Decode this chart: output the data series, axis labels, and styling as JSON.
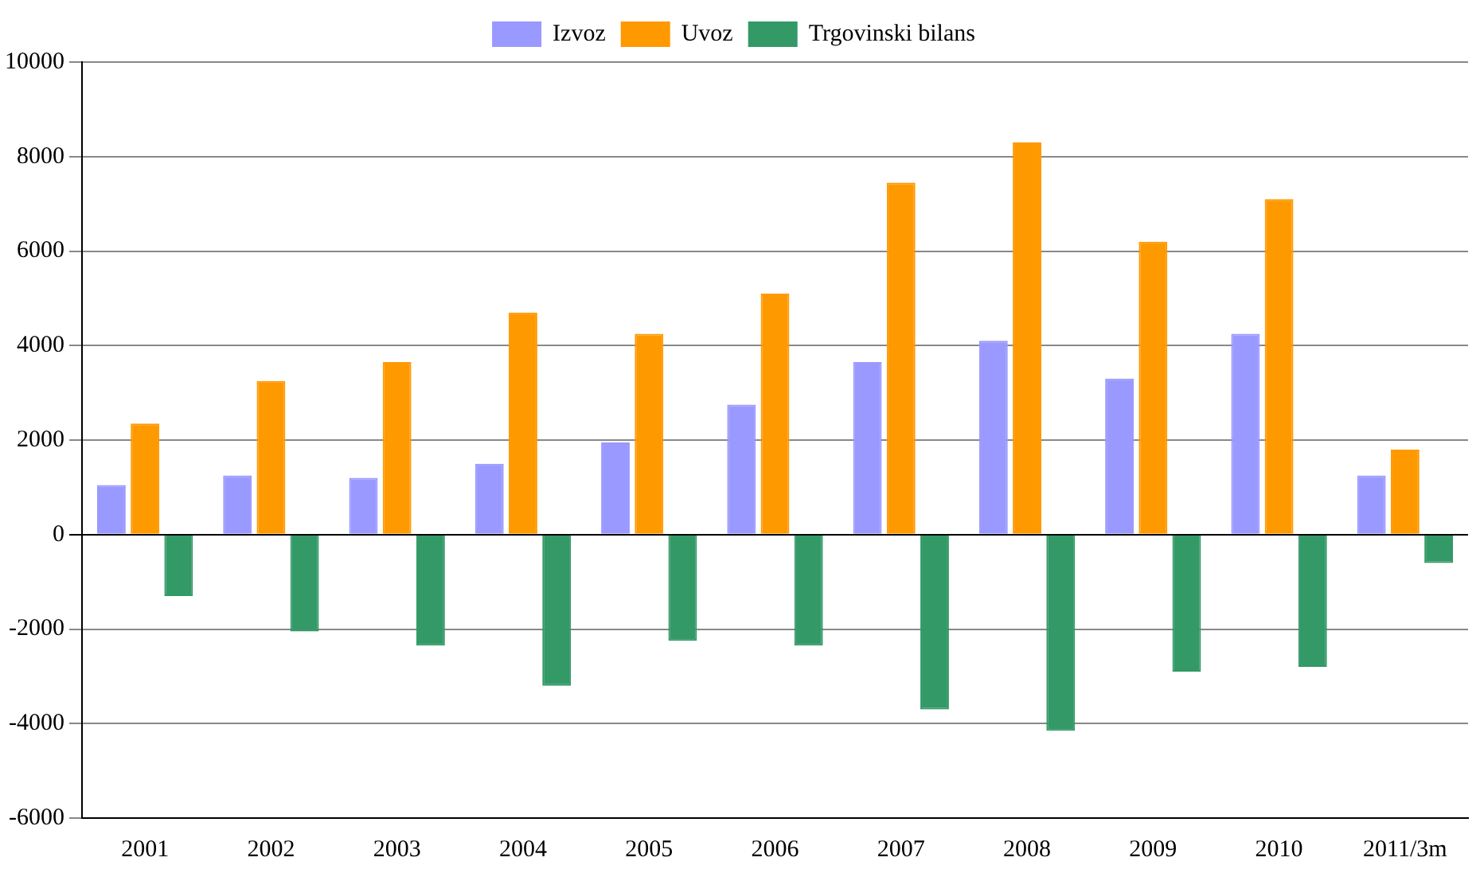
{
  "chart_data": {
    "type": "bar",
    "categories": [
      "2001",
      "2002",
      "2003",
      "2004",
      "2005",
      "2006",
      "2007",
      "2008",
      "2009",
      "2010",
      "2011/3m"
    ],
    "series": [
      {
        "name": "Izvoz",
        "color": "#9999ff",
        "values": [
          1050,
          1250,
          1200,
          1500,
          1950,
          2750,
          3650,
          4100,
          3300,
          4250,
          1250
        ]
      },
      {
        "name": "Uvoz",
        "color": "#ff9900",
        "values": [
          2350,
          3250,
          3650,
          4700,
          4250,
          5100,
          7450,
          8300,
          6200,
          7100,
          1800
        ]
      },
      {
        "name": "Trgovinski bilans",
        "color": "#339966",
        "values": [
          -1300,
          -2050,
          -2350,
          -3200,
          -2250,
          -2350,
          -3700,
          -4150,
          -2900,
          -2800,
          -600
        ]
      }
    ],
    "ylim": [
      -6000,
      10000
    ],
    "yticks": [
      -6000,
      -4000,
      -2000,
      0,
      2000,
      4000,
      6000,
      8000,
      10000
    ],
    "grid": "y",
    "legend": "top"
  }
}
